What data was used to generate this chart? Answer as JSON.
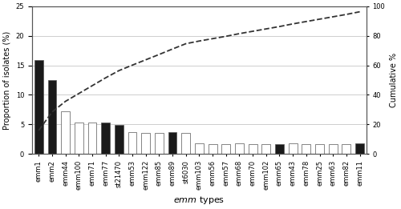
{
  "categories": [
    "emm1",
    "emm2",
    "emm44",
    "emm100",
    "emm71",
    "emm77",
    "st21470",
    "emm53",
    "emm122",
    "emm85",
    "emm89",
    "st6030",
    "emm103",
    "emm56",
    "emm57",
    "emm68",
    "emm70",
    "emm102",
    "emm65",
    "emm43",
    "emm78",
    "emm25",
    "emm63",
    "emm82",
    "emm11"
  ],
  "values": [
    15.9,
    12.5,
    7.2,
    5.3,
    5.3,
    5.3,
    4.9,
    3.7,
    3.6,
    3.6,
    3.7,
    3.6,
    1.8,
    1.6,
    1.6,
    1.8,
    1.6,
    1.6,
    1.6,
    1.8,
    1.6,
    1.6,
    1.6,
    1.6,
    1.8
  ],
  "bar_colors": [
    "#1a1a1a",
    "#1a1a1a",
    "#ffffff",
    "#ffffff",
    "#ffffff",
    "#1a1a1a",
    "#1a1a1a",
    "#ffffff",
    "#ffffff",
    "#ffffff",
    "#1a1a1a",
    "#ffffff",
    "#ffffff",
    "#ffffff",
    "#ffffff",
    "#ffffff",
    "#ffffff",
    "#ffffff",
    "#1a1a1a",
    "#ffffff",
    "#ffffff",
    "#ffffff",
    "#ffffff",
    "#ffffff",
    "#1a1a1a"
  ],
  "cumulative": [
    15.9,
    28.4,
    35.6,
    40.9,
    46.2,
    51.5,
    56.4,
    60.1,
    63.7,
    67.3,
    71.0,
    74.6,
    76.4,
    78.0,
    79.6,
    81.4,
    83.0,
    84.6,
    86.2,
    88.0,
    89.6,
    91.2,
    92.8,
    94.4,
    96.2
  ],
  "ylabel_left": "Proportion of isolates (%)",
  "ylabel_right": "Cumulative %",
  "xlabel": "emm types",
  "ylim_left": [
    0,
    25
  ],
  "ylim_right": [
    0,
    100
  ],
  "yticks_left": [
    0,
    5,
    10,
    15,
    20,
    25
  ],
  "yticks_right": [
    0,
    20,
    40,
    60,
    80,
    100
  ],
  "bar_edge_color": "#555555",
  "dashed_line_color": "#333333",
  "background_color": "#ffffff",
  "grid_color": "#bbbbbb",
  "xlabel_fontsize": 8,
  "ylabel_fontsize": 7,
  "tick_fontsize": 6,
  "bar_width": 0.65
}
